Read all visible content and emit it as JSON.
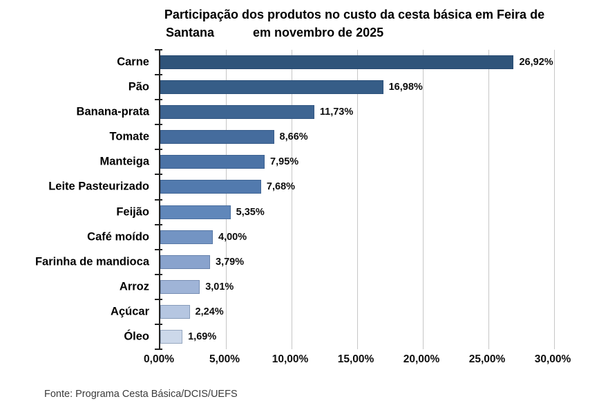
{
  "title": {
    "line1": "Participação dos produtos no custo da cesta básica em Feira de",
    "line2a": "Santana",
    "line2b": "em novembro de 2025"
  },
  "source": "Fonte: Programa Cesta Básica/DCIS/UEFS",
  "chart_data": {
    "type": "bar",
    "orientation": "horizontal",
    "title": "Participação dos produtos no custo da cesta básica em Feira de Santana em novembro de 2025",
    "categories": [
      "Carne",
      "Pão",
      "Banana-prata",
      "Tomate",
      "Manteiga",
      "Leite Pasteurizado",
      "Feijão",
      "Café moído",
      "Farinha de mandioca",
      "Arroz",
      "Açúcar",
      "Óleo"
    ],
    "values": [
      26.92,
      16.98,
      11.73,
      8.66,
      7.95,
      7.68,
      5.35,
      4.0,
      3.79,
      3.01,
      2.24,
      1.69
    ],
    "value_labels": [
      "26,92%",
      "16,98%",
      "11,73%",
      "8,66%",
      "7,95%",
      "7,68%",
      "5,35%",
      "4,00%",
      "3,79%",
      "3,01%",
      "2,24%",
      "1,69%"
    ],
    "bar_colors": [
      "#2f547a",
      "#365d87",
      "#3e6592",
      "#456c9d",
      "#4b73a6",
      "#527aae",
      "#6087ba",
      "#7394c3",
      "#89a3cd",
      "#9fb4d7",
      "#b5c6e1",
      "#ccd8ea"
    ],
    "xlabel": "",
    "ylabel": "",
    "xlim": [
      0,
      30
    ],
    "x_ticks": [
      0,
      5,
      10,
      15,
      20,
      25,
      30
    ],
    "x_tick_labels": [
      "0,00%",
      "5,00%",
      "10,00%",
      "15,00%",
      "20,00%",
      "25,00%",
      "30,00%"
    ],
    "grid": "vertical",
    "legend": false,
    "grid_color": "#c6c6c6",
    "axis_color": "#222222"
  }
}
